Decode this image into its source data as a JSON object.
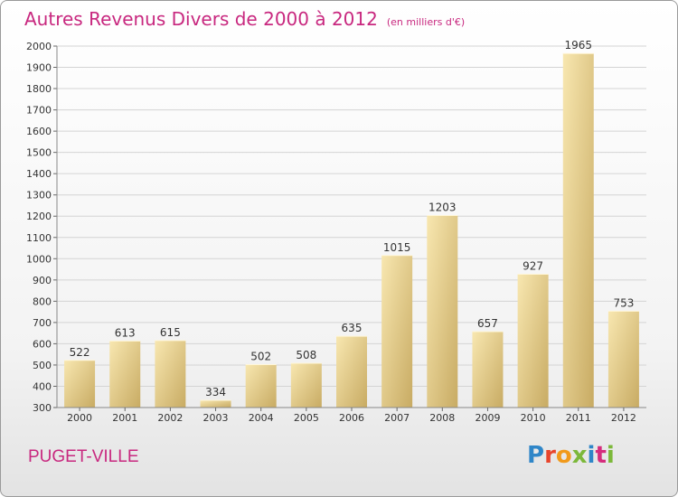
{
  "header": {
    "title": "Autres Revenus Divers de 2000 à 2012",
    "subtitle": "(en milliers d'€)"
  },
  "footer": {
    "commune": "PUGET-VILLE",
    "logo": "Proxiti"
  },
  "colors": {
    "accent": "#c8287f",
    "bar_light": "#f6e2a6",
    "bar_dark": "#c9ae68",
    "grid": "#d4d4d4"
  },
  "chart_data": {
    "type": "bar",
    "title": "Autres Revenus Divers de 2000 à 2012",
    "subtitle": "(en milliers d'€)",
    "categories": [
      "2000",
      "2001",
      "2002",
      "2003",
      "2004",
      "2005",
      "2006",
      "2007",
      "2008",
      "2009",
      "2010",
      "2011",
      "2012"
    ],
    "values": [
      522,
      613,
      615,
      334,
      502,
      508,
      635,
      1015,
      1203,
      657,
      927,
      1965,
      753
    ],
    "ylim": [
      300,
      2000
    ],
    "yticks": [
      300,
      400,
      500,
      600,
      700,
      800,
      900,
      1000,
      1100,
      1200,
      1300,
      1400,
      1500,
      1600,
      1700,
      1800,
      1900,
      2000
    ],
    "grid": true,
    "data_labels": true,
    "xlabel": "",
    "ylabel": ""
  }
}
